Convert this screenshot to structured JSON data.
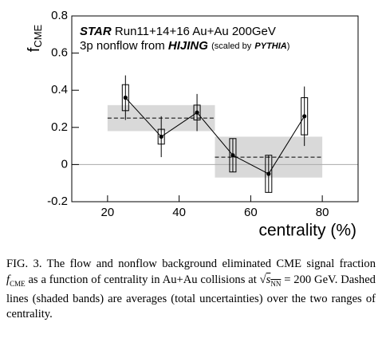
{
  "chart_data": {
    "type": "errorbar",
    "annotations": [
      "STAR",
      "Run11+14+16 Au+Au 200GeV",
      "3p nonflow from",
      "HIJING",
      "(scaled by",
      "PYTHIA",
      ")"
    ],
    "ylabel": "f",
    "ylabel_sub": "CME",
    "xlabel": "centrality (%)",
    "x": [
      25,
      35,
      45,
      55,
      65,
      75
    ],
    "series": [
      {
        "color": "#000000",
        "values": [
          0.36,
          0.15,
          0.28,
          0.05,
          -0.05,
          0.26
        ],
        "stat_errors": [
          0.12,
          0.11,
          0.1,
          0.09,
          0.1,
          0.16
        ],
        "sys_errors": [
          0.07,
          0.04,
          0.04,
          0.09,
          0.1,
          0.1
        ]
      }
    ],
    "averages": [
      {
        "x_range": [
          20,
          50
        ],
        "value": 0.25,
        "error": 0.07
      },
      {
        "x_range": [
          50,
          80
        ],
        "value": 0.04,
        "error": 0.11
      }
    ],
    "band_color": "#d9d9d9",
    "xlim": [
      10,
      90
    ],
    "ylim": [
      -0.2,
      0.8
    ],
    "xticks": [
      20,
      40,
      60,
      80
    ],
    "yticks": [
      -0.2,
      0,
      0.2,
      0.4,
      0.6,
      0.8
    ]
  },
  "caption": [
    "FIG. 3.",
    "The flow and nonflow background eliminated CME signal fraction",
    "f",
    "CME",
    "as a function of centrality in Au+Au collisions at",
    "√",
    "s",
    "NN",
    "= 200 GeV. Dashed lines (shaded bands) are averages (total uncertainties) over the two ranges of centrality."
  ]
}
